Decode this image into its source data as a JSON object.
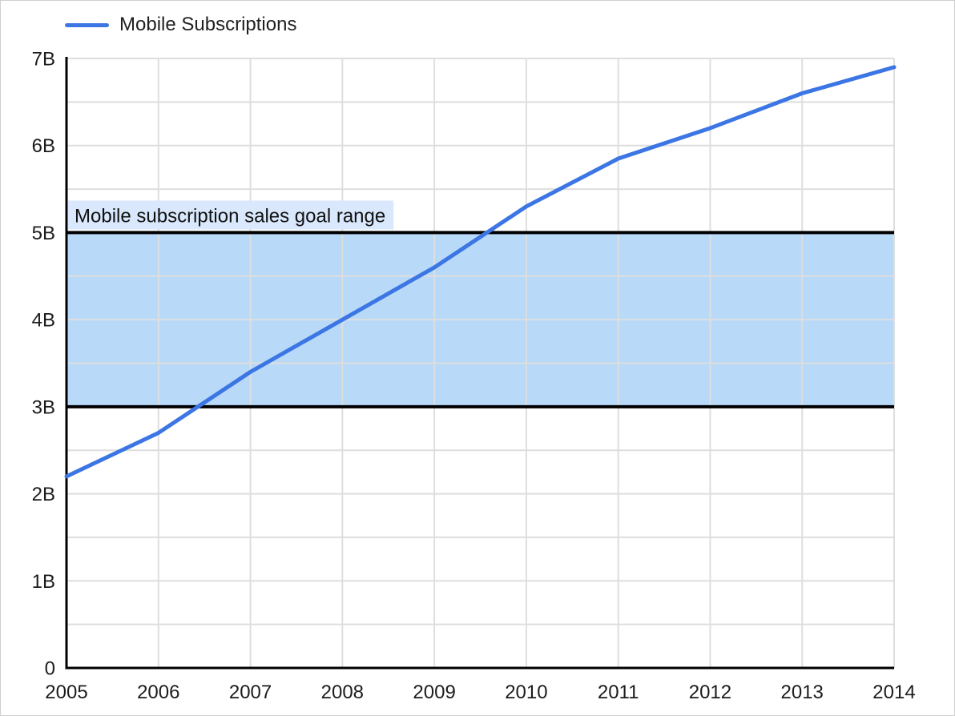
{
  "legend": {
    "label": "Mobile Subscriptions"
  },
  "colors": {
    "series": "#3c76e4",
    "band_fill": "#b8d9f8",
    "band_border": "#000000",
    "band_label_bg": "#d9e8fc",
    "gridline": "#dedede",
    "axis": "#000000",
    "text": "#1c1c1c"
  },
  "chart_data": {
    "type": "line",
    "title": "",
    "xlabel": "",
    "ylabel": "",
    "x": [
      2005,
      2006,
      2007,
      2008,
      2009,
      2010,
      2011,
      2012,
      2013,
      2014
    ],
    "x_tick_labels": [
      "2005",
      "2006",
      "2007",
      "2008",
      "2009",
      "2010",
      "2011",
      "2012",
      "2013",
      "2014"
    ],
    "series": [
      {
        "name": "Mobile Subscriptions",
        "values": [
          2.2,
          2.7,
          3.4,
          4.0,
          4.6,
          5.3,
          5.85,
          6.2,
          6.6,
          6.9
        ]
      }
    ],
    "ylim": [
      0,
      7
    ],
    "y_tick_labels": [
      "0",
      "1B",
      "2B",
      "3B",
      "4B",
      "5B",
      "6B",
      "7B"
    ],
    "y_major_step": 1,
    "y_minor_step": 0.5,
    "grid": true,
    "legend_position": "top-left",
    "annotations": [
      {
        "type": "horizontal-band",
        "label": "Mobile subscription sales goal range",
        "y_from": 3,
        "y_to": 5
      }
    ]
  }
}
